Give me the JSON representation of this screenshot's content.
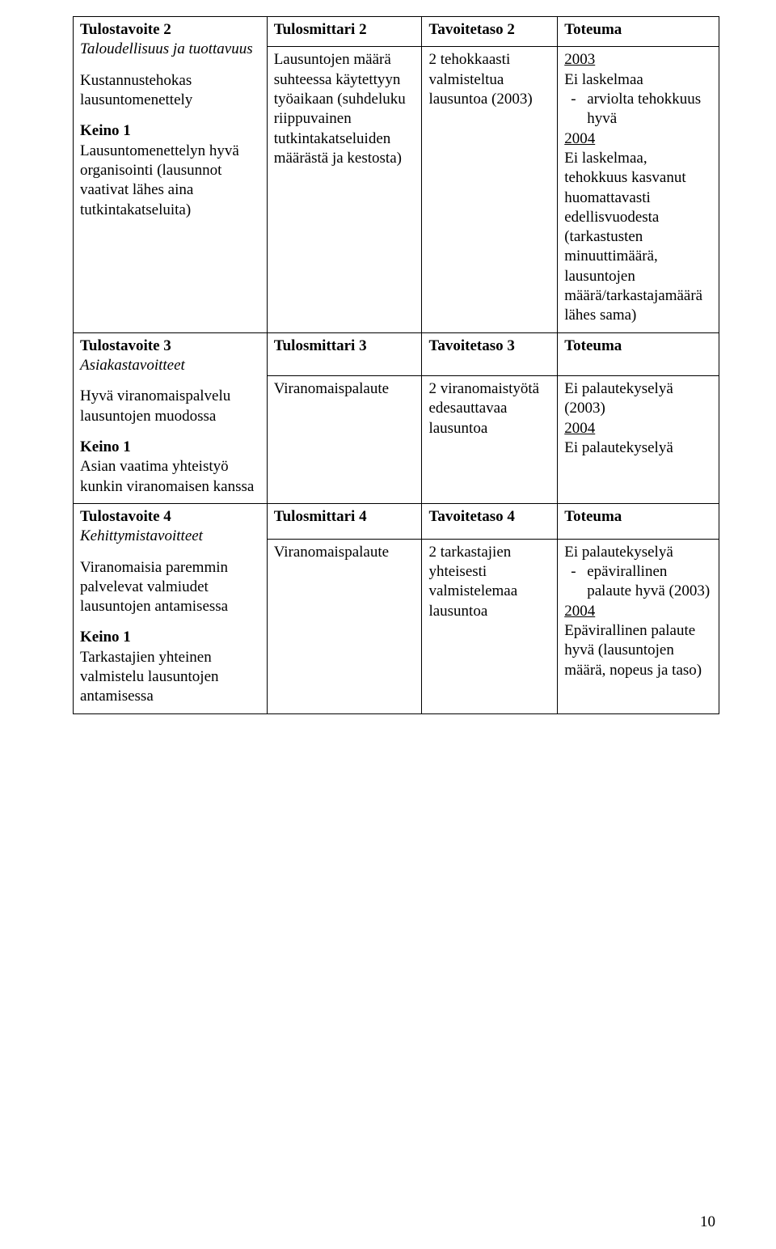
{
  "rows": {
    "r1": {
      "c1_title": "Tulostavoite 2",
      "c1_sub_it": "Taloudellisuus ja tuottavuus",
      "c1_p1": "Kustannustehokas lausuntomenettely",
      "c1_k": "Keino 1",
      "c1_p2": "Lausuntomenettelyn hyvä organisointi (lausunnot vaativat lähes aina tutkintakatseluita)",
      "c2_title": "Tulosmittari 2",
      "c2_body": "Lausuntojen määrä suhteessa käytettyyn työaikaan (suhdeluku riippuvainen tutkintakatseluiden määrästä ja kestosta)",
      "c3_title": "Tavoitetaso 2",
      "c3_body": "2 tehokkaasti valmisteltua lausuntoa (2003)",
      "c4_title": "Toteuma",
      "c4_y1": "2003",
      "c4_l1": "Ei laskelmaa",
      "c4_bullet": "arviolta tehokkuus hyvä",
      "c4_y2": "2004",
      "c4_p2": "Ei laskelmaa, tehokkuus kasvanut huomattavasti edellisvuodesta (tarkastusten minuuttimäärä, lausuntojen määrä/tarkastajamäärä lähes sama)"
    },
    "r2": {
      "c1_title": "Tulostavoite 3",
      "c1_sub_it": "Asiakastavoitteet",
      "c1_p1": "Hyvä viranomaispalvelu lausuntojen muodossa",
      "c1_k": "Keino 1",
      "c1_p2": "Asian vaatima yhteistyö kunkin viranomaisen kanssa",
      "c2_title": "Tulosmittari 3",
      "c2_body": "Viranomaispalaute",
      "c3_title": "Tavoitetaso 3",
      "c3_body": "2 viranomaistyötä edesauttavaa lausuntoa",
      "c4_title": "Toteuma",
      "c4_l1": "Ei palautekyselyä (2003)",
      "c4_y2": "2004",
      "c4_l2": "Ei palautekyselyä"
    },
    "r3": {
      "c1_title": "Tulostavoite 4",
      "c1_sub_it": "Kehittymistavoitteet",
      "c1_p1": "Viranomaisia paremmin palvelevat valmiudet lausuntojen antamisessa",
      "c1_k": "Keino 1",
      "c1_p2": "Tarkastajien yhteinen valmistelu lausuntojen antamisessa",
      "c2_title": "Tulosmittari 4",
      "c2_body": "Viranomaispalaute",
      "c3_title": "Tavoitetaso 4",
      "c3_body": "2 tarkastajien yhteisesti valmistelemaa lausuntoa",
      "c4_title": "Toteuma",
      "c4_l1": "Ei palautekyselyä",
      "c4_bullet": "epävirallinen palaute hyvä (2003)",
      "c4_y2": "2004",
      "c4_p2": "Epävirallinen palaute hyvä (lausuntojen määrä, nopeus ja taso)"
    }
  },
  "page_number": "10"
}
